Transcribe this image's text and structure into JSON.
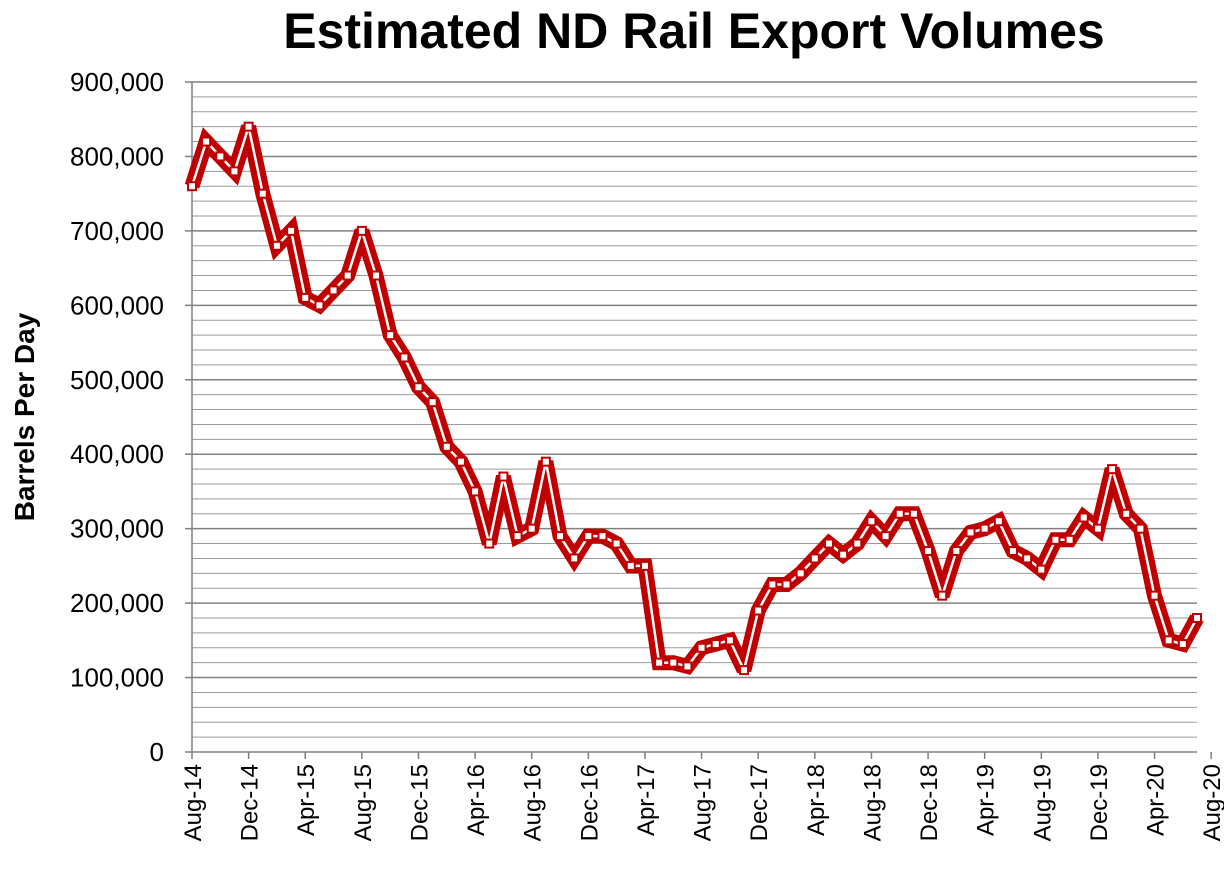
{
  "chart_data": {
    "type": "line",
    "title": "Estimated ND Rail Export Volumes",
    "xlabel": "",
    "ylabel": "Barrels Per Day",
    "ylim": [
      0,
      900000
    ],
    "grid": true,
    "legend": "none",
    "colors": {
      "series": "#c00000",
      "grid": "#9a9a9a",
      "axis": "#808080"
    },
    "y_ticks": [
      "0",
      "100,000",
      "200,000",
      "300,000",
      "400,000",
      "500,000",
      "600,000",
      "700,000",
      "800,000",
      "900,000"
    ],
    "x_ticks": [
      "Aug-14",
      "Dec-14",
      "Apr-15",
      "Aug-15",
      "Dec-15",
      "Apr-16",
      "Aug-16",
      "Dec-16",
      "Apr-17",
      "Aug-17",
      "Dec-17",
      "Apr-18",
      "Aug-18",
      "Dec-18",
      "Apr-19",
      "Aug-19",
      "Dec-19",
      "Apr-20",
      "Aug-20"
    ],
    "series": [
      {
        "values": [
          760000,
          820000,
          800000,
          780000,
          840000,
          750000,
          680000,
          700000,
          610000,
          600000,
          620000,
          640000,
          700000,
          640000,
          560000,
          530000,
          490000,
          470000,
          410000,
          390000,
          350000,
          280000,
          370000,
          290000,
          300000,
          390000,
          290000,
          260000,
          290000,
          290000,
          280000,
          250000,
          250000,
          120000,
          120000,
          115000,
          140000,
          145000,
          150000,
          110000,
          190000,
          225000,
          225000,
          240000,
          260000,
          280000,
          265000,
          280000,
          310000,
          290000,
          320000,
          320000,
          270000,
          210000,
          270000,
          295000,
          300000,
          310000,
          270000,
          260000,
          245000,
          285000,
          285000,
          315000,
          300000,
          380000,
          320000,
          300000,
          210000,
          150000,
          145000,
          180000
        ]
      }
    ]
  }
}
